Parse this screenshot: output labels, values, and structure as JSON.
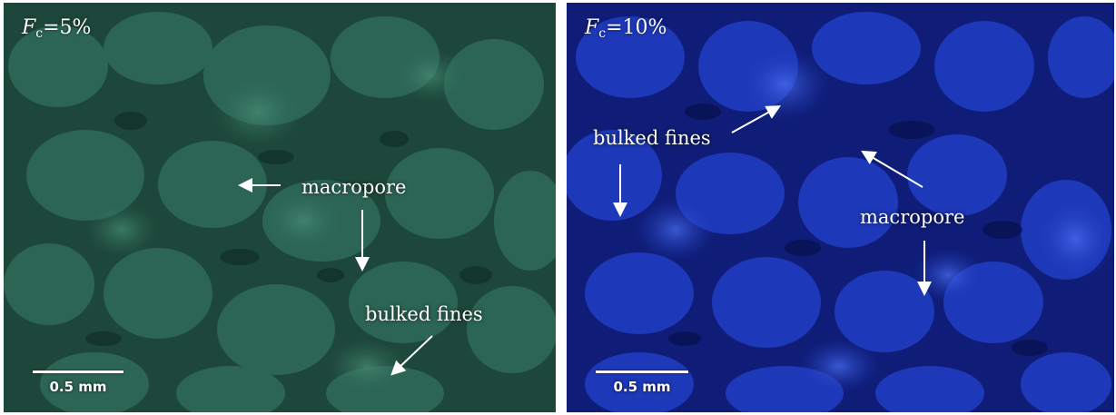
{
  "panels": [
    {
      "fc_var": "F",
      "fc_sub": "c",
      "fc_value": "=5%",
      "annotation_1": "macropore",
      "annotation_2": "bulked fines",
      "scale_bar": "0.5 mm",
      "colors": {
        "base": "#1f4a3c",
        "grain": "#2e6a58",
        "highlight": "#4a8f78"
      }
    },
    {
      "fc_var": "F",
      "fc_sub": "c",
      "fc_value": "=10%",
      "annotation_1": "bulked fines",
      "annotation_2": "macropore",
      "scale_bar": "0.5 mm",
      "colors": {
        "base": "#101f7a",
        "grain": "#1e3aba",
        "highlight": "#3a5ee0"
      }
    }
  ]
}
